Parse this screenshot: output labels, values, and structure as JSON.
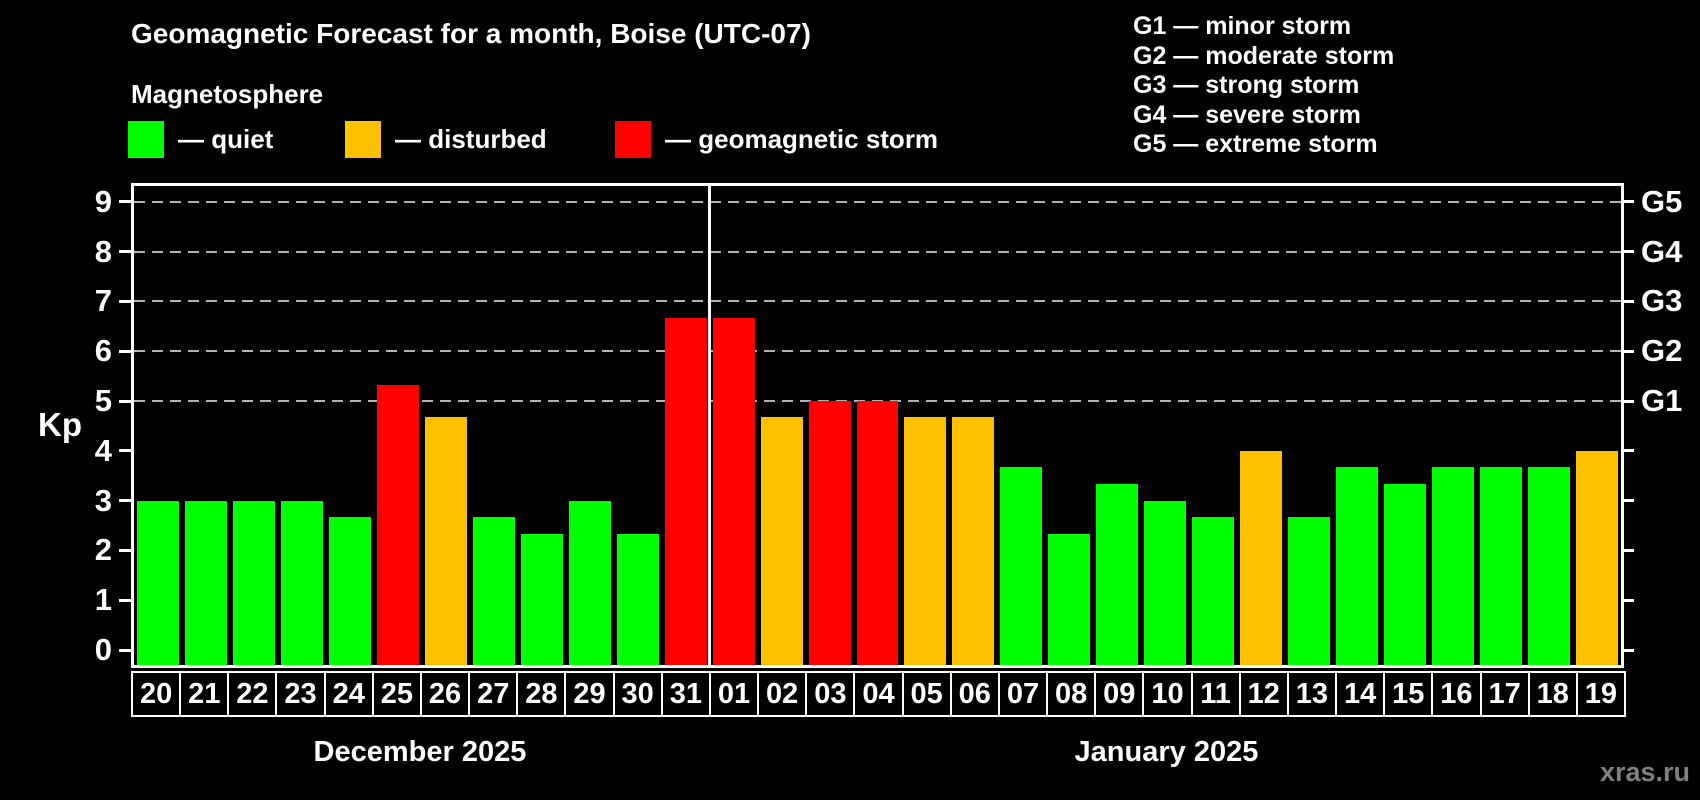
{
  "title": "Geomagnetic Forecast for a month, Boise (UTC-07)",
  "subtitle": "Magnetosphere",
  "legend": {
    "items": [
      {
        "key": "quiet",
        "label": "— quiet",
        "color": "#00ff00"
      },
      {
        "key": "disturbed",
        "label": "— disturbed",
        "color": "#ffc000"
      },
      {
        "key": "storm",
        "label": "— geomagnetic storm",
        "color": "#ff0000"
      }
    ]
  },
  "g_scale_legend": [
    "G1 — minor storm",
    "G2 — moderate storm",
    "G3 — strong storm",
    "G4 — severe storm",
    "G5 — extreme storm"
  ],
  "watermark": "xras.ru",
  "colors": {
    "background": "#000000",
    "text": "#ffffff",
    "axis": "#ffffff",
    "grid": "#b3b3b3",
    "watermark": "#808080",
    "quiet": "#00ff00",
    "disturbed": "#ffc000",
    "storm": "#ff0000"
  },
  "chart_data": {
    "type": "bar",
    "title": "Geomagnetic Forecast for a month, Boise (UTC-07)",
    "ylabel": "Kp",
    "xlabel": "",
    "ylim": [
      0,
      9
    ],
    "y_ticks": [
      0,
      1,
      2,
      3,
      4,
      5,
      6,
      7,
      8,
      9
    ],
    "gridlines_at": [
      5,
      6,
      7,
      8,
      9
    ],
    "grid": "dashed horizontal",
    "right_axis_labels": [
      {
        "kp": 5,
        "text": "G1"
      },
      {
        "kp": 6,
        "text": "G2"
      },
      {
        "kp": 7,
        "text": "G3"
      },
      {
        "kp": 8,
        "text": "G4"
      },
      {
        "kp": 9,
        "text": "G5"
      }
    ],
    "categories": [
      "20",
      "21",
      "22",
      "23",
      "24",
      "25",
      "26",
      "27",
      "28",
      "29",
      "30",
      "31",
      "01",
      "02",
      "03",
      "04",
      "05",
      "06",
      "07",
      "08",
      "09",
      "10",
      "11",
      "12",
      "13",
      "14",
      "15",
      "16",
      "17",
      "18",
      "19"
    ],
    "values": [
      3,
      3,
      3,
      3,
      2.67,
      5.33,
      4.67,
      2.67,
      2.33,
      3,
      2.33,
      6.67,
      6.67,
      4.67,
      5,
      5,
      4.67,
      4.67,
      3.67,
      2.33,
      3.33,
      3,
      2.67,
      4,
      2.67,
      3.67,
      3.33,
      3.67,
      3.67,
      3.67,
      4
    ],
    "statuses": [
      "quiet",
      "quiet",
      "quiet",
      "quiet",
      "quiet",
      "storm",
      "disturbed",
      "quiet",
      "quiet",
      "quiet",
      "quiet",
      "storm",
      "storm",
      "disturbed",
      "storm",
      "storm",
      "disturbed",
      "disturbed",
      "quiet",
      "quiet",
      "quiet",
      "quiet",
      "quiet",
      "disturbed",
      "quiet",
      "quiet",
      "quiet",
      "quiet",
      "quiet",
      "quiet",
      "disturbed"
    ],
    "status_colors": {
      "quiet": "#00ff00",
      "disturbed": "#ffc000",
      "storm": "#ff0000"
    },
    "month_groups": [
      {
        "label": "December 2025",
        "start_index": 0,
        "count": 12
      },
      {
        "label": "January 2025",
        "start_index": 12,
        "count": 19
      }
    ]
  }
}
